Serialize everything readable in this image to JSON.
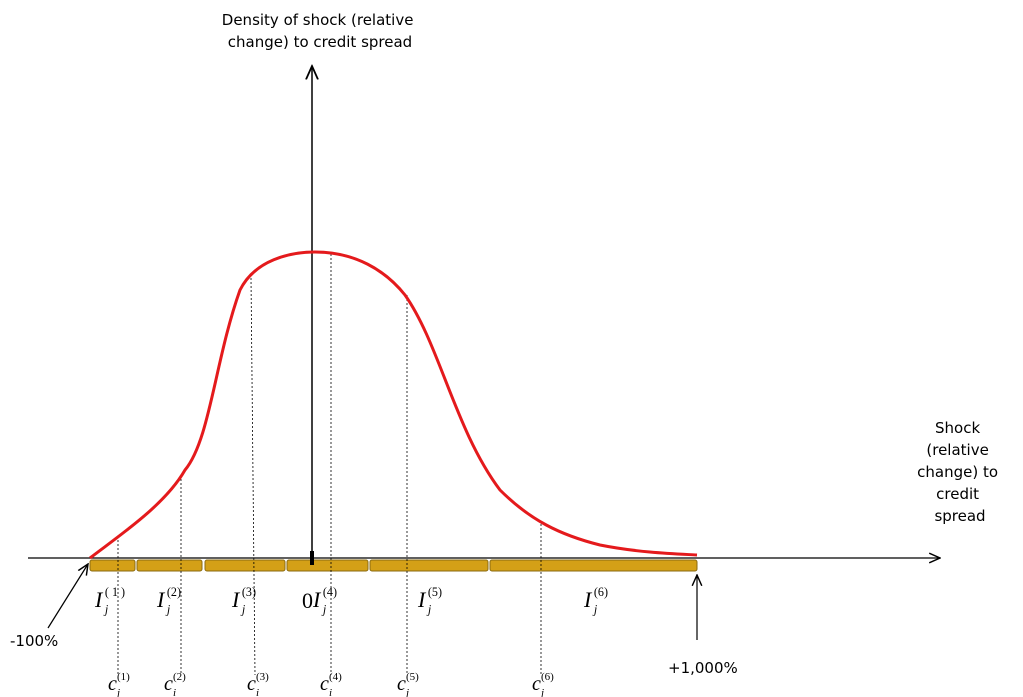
{
  "axes": {
    "y_label": [
      "Density of shock (relative",
      "change) to credit spread"
    ],
    "x_label": [
      "Shock",
      "(relative",
      "change) to",
      "credit",
      "spread"
    ],
    "origin": "0"
  },
  "annotations": {
    "left": "-100%",
    "right": "+1,000%"
  },
  "intervals": [
    {
      "base": "I",
      "sub": "j",
      "sup": "( 1 )"
    },
    {
      "base": "I",
      "sub": "j",
      "sup": "(2)"
    },
    {
      "base": "I",
      "sub": "j",
      "sup": "(3)"
    },
    {
      "base": "I",
      "sub": "j",
      "sup": "(4)"
    },
    {
      "base": "I",
      "sub": "j",
      "sup": "(5)"
    },
    {
      "base": "I",
      "sub": "j",
      "sup": "(6)"
    }
  ],
  "cut_points": [
    {
      "base": "c",
      "sub": "j",
      "sup": "(1)"
    },
    {
      "base": "c",
      "sub": "i",
      "sup": "(2)"
    },
    {
      "base": "c",
      "sub": "i",
      "sup": "(3)"
    },
    {
      "base": "c",
      "sub": "i",
      "sup": "(4)"
    },
    {
      "base": "c",
      "sub": "j",
      "sup": "(5)"
    },
    {
      "base": "c",
      "sub": "j",
      "sup": "(6)"
    }
  ]
}
